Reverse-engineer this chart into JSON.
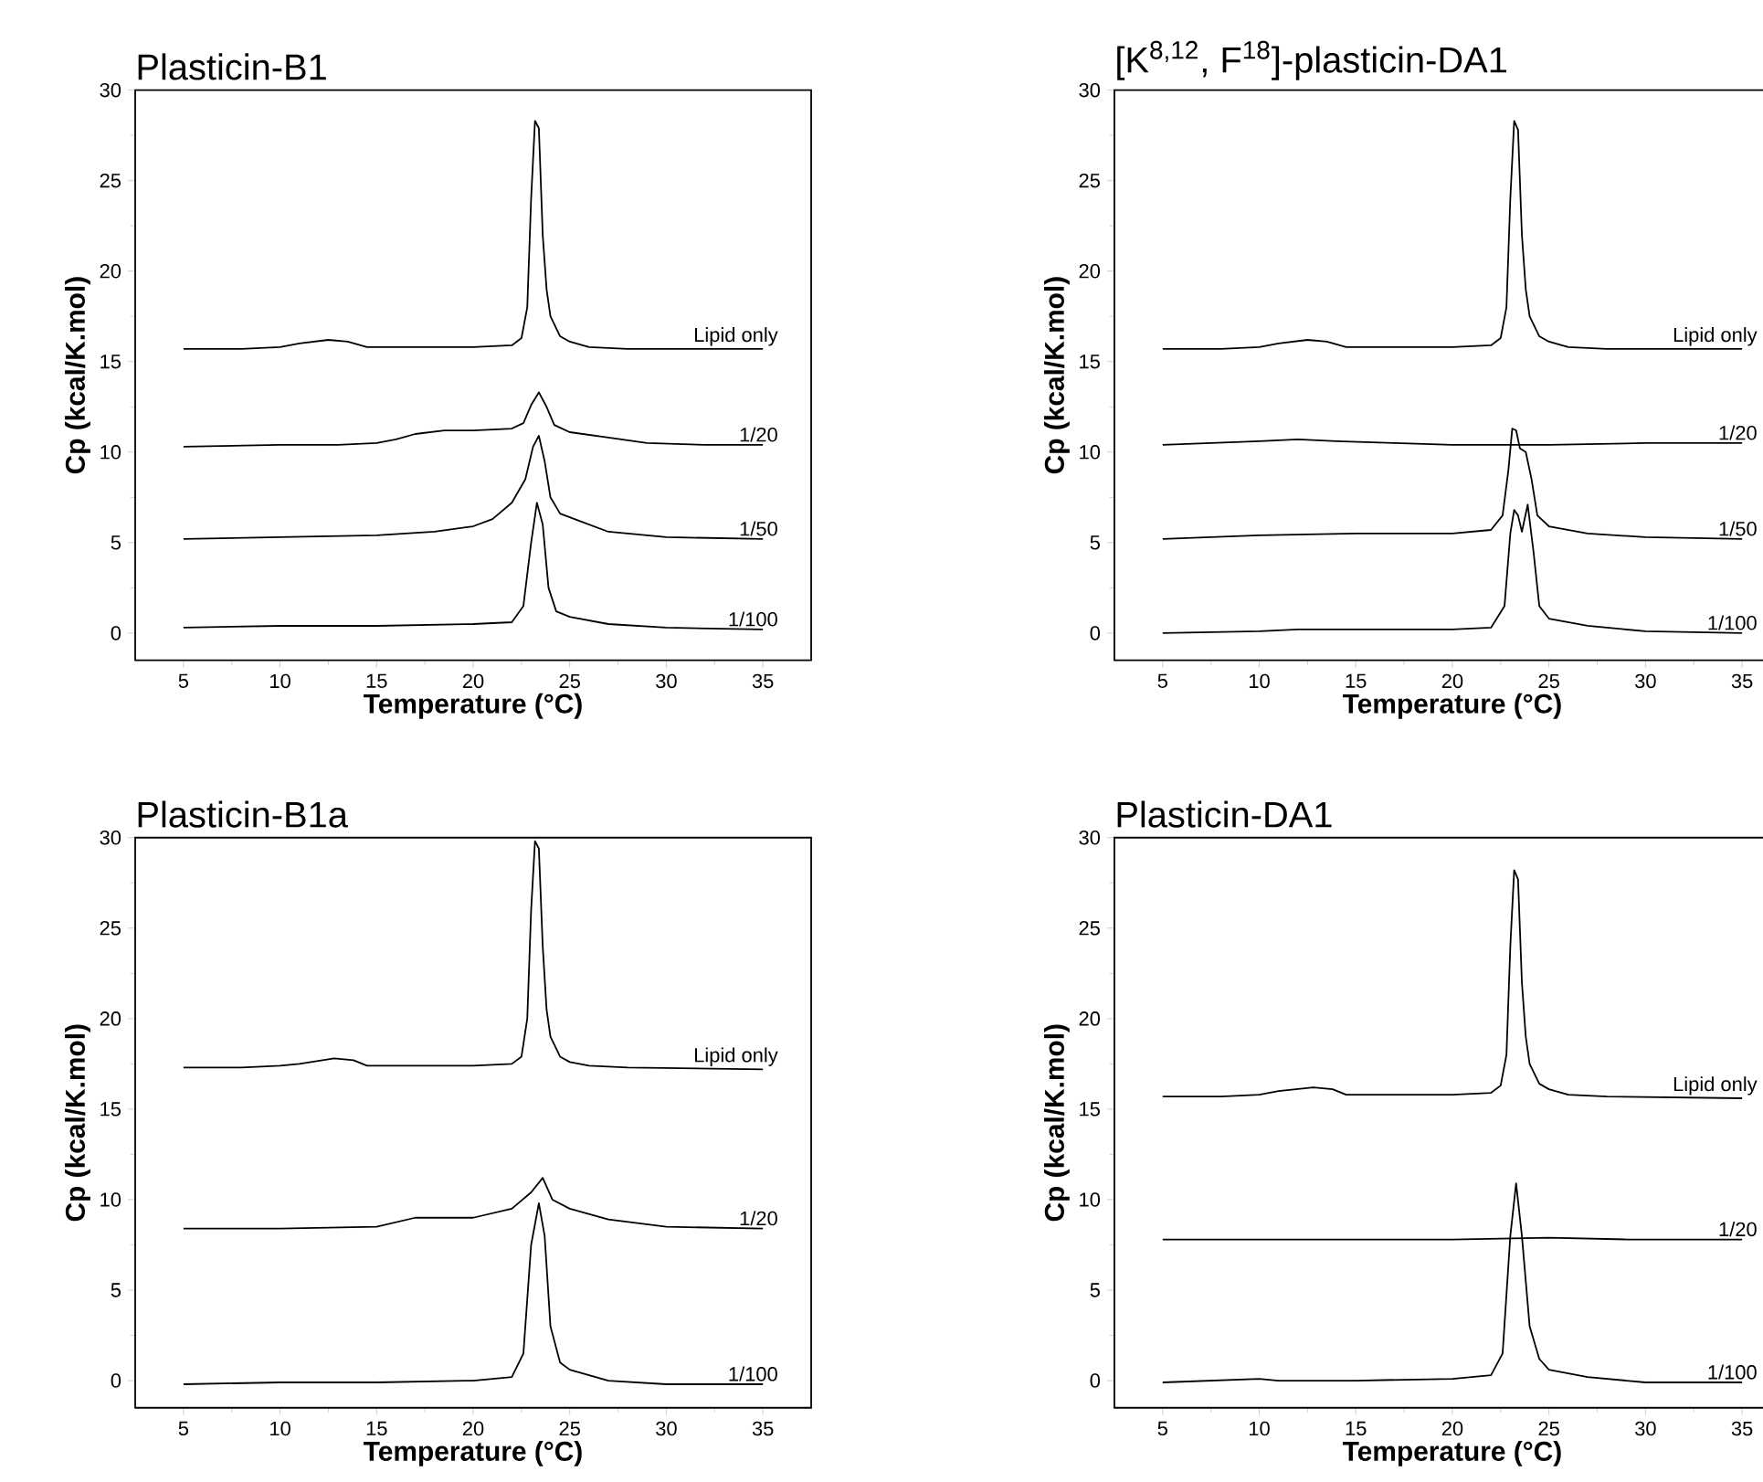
{
  "chart_data": [
    {
      "type": "line",
      "title": "Plasticin-B1",
      "xlabel": "Temperature (°C)",
      "ylabel": "Cp (kcal/K.mol)",
      "xlim": [
        2.5,
        37.5
      ],
      "ylim": [
        -1.5,
        30
      ],
      "xticks": [
        5,
        10,
        15,
        20,
        25,
        30,
        35
      ],
      "yticks": [
        0,
        5,
        10,
        15,
        20,
        25,
        30
      ],
      "series": [
        {
          "name": "Lipid only",
          "color": "#000000",
          "x": [
            5,
            8,
            10,
            11,
            12.5,
            13.5,
            14.5,
            17,
            20,
            22,
            22.5,
            22.8,
            23.0,
            23.2,
            23.4,
            23.6,
            23.8,
            24.0,
            24.5,
            25,
            26,
            28,
            35
          ],
          "values": [
            15.7,
            15.7,
            15.8,
            16.0,
            16.2,
            16.1,
            15.8,
            15.8,
            15.8,
            15.9,
            16.3,
            18,
            24,
            28.3,
            27.9,
            22,
            19,
            17.5,
            16.4,
            16.1,
            15.8,
            15.7,
            15.7
          ]
        },
        {
          "name": "1/20",
          "color": "#000000",
          "x": [
            5,
            10,
            13,
            15,
            16,
            17,
            18.5,
            20,
            22,
            22.6,
            23.0,
            23.4,
            23.8,
            24.2,
            25,
            27,
            29,
            32,
            35
          ],
          "values": [
            10.3,
            10.4,
            10.4,
            10.5,
            10.7,
            11.0,
            11.2,
            11.2,
            11.3,
            11.6,
            12.6,
            13.3,
            12.5,
            11.5,
            11.1,
            10.8,
            10.5,
            10.4,
            10.4
          ]
        },
        {
          "name": "1/50",
          "color": "#000000",
          "x": [
            5,
            10,
            15,
            18,
            20,
            21,
            22,
            22.7,
            23.1,
            23.4,
            23.7,
            24.0,
            24.5,
            25.5,
            27,
            30,
            35
          ],
          "values": [
            5.2,
            5.3,
            5.4,
            5.6,
            5.9,
            6.3,
            7.2,
            8.5,
            10.3,
            10.9,
            9.5,
            7.5,
            6.6,
            6.2,
            5.6,
            5.3,
            5.2
          ]
        },
        {
          "name": "1/100",
          "color": "#000000",
          "x": [
            5,
            10,
            15,
            20,
            22,
            22.6,
            23.0,
            23.3,
            23.6,
            23.9,
            24.3,
            25,
            27,
            30,
            35
          ],
          "values": [
            0.3,
            0.4,
            0.4,
            0.5,
            0.6,
            1.5,
            5,
            7.2,
            6,
            2.5,
            1.2,
            0.9,
            0.5,
            0.3,
            0.2
          ]
        }
      ]
    },
    {
      "type": "line",
      "title": "[K$^{8,12}$, F$^{18}$]-plasticin-DA1",
      "xlabel": "Temperature (°C)",
      "ylabel": "Cp (kcal/K.mol)",
      "xlim": [
        2.5,
        37.5
      ],
      "ylim": [
        -1.5,
        30
      ],
      "xticks": [
        5,
        10,
        15,
        20,
        25,
        30,
        35
      ],
      "yticks": [
        0,
        5,
        10,
        15,
        20,
        25,
        30
      ],
      "series": [
        {
          "name": "Lipid only",
          "color": "#000000",
          "x": [
            5,
            8,
            10,
            11,
            12.5,
            13.5,
            14.5,
            17,
            20,
            22,
            22.5,
            22.8,
            23.0,
            23.2,
            23.4,
            23.6,
            23.8,
            24.0,
            24.5,
            25,
            26,
            28,
            35
          ],
          "values": [
            15.7,
            15.7,
            15.8,
            16.0,
            16.2,
            16.1,
            15.8,
            15.8,
            15.8,
            15.9,
            16.3,
            18,
            24,
            28.3,
            27.8,
            22,
            19,
            17.5,
            16.4,
            16.1,
            15.8,
            15.7,
            15.7
          ]
        },
        {
          "name": "1/20",
          "color": "#000000",
          "x": [
            5,
            10,
            12,
            14,
            17,
            20,
            25,
            30,
            35
          ],
          "values": [
            10.4,
            10.6,
            10.7,
            10.6,
            10.5,
            10.4,
            10.4,
            10.5,
            10.5
          ]
        },
        {
          "name": "1/50",
          "color": "#000000",
          "x": [
            5,
            10,
            15,
            20,
            22,
            22.6,
            22.9,
            23.1,
            23.3,
            23.5,
            23.8,
            24.1,
            24.4,
            25,
            27,
            30,
            35
          ],
          "values": [
            5.2,
            5.4,
            5.5,
            5.5,
            5.7,
            6.5,
            9,
            11.3,
            11.2,
            10.2,
            10.0,
            8.5,
            6.5,
            5.9,
            5.5,
            5.3,
            5.2
          ]
        },
        {
          "name": "1/100",
          "color": "#000000",
          "x": [
            5,
            10,
            12,
            15,
            20,
            22,
            22.7,
            23.0,
            23.2,
            23.4,
            23.6,
            23.9,
            24.2,
            24.5,
            25,
            27,
            30,
            35
          ],
          "values": [
            0,
            0.1,
            0.2,
            0.2,
            0.2,
            0.3,
            1.5,
            5.5,
            6.8,
            6.5,
            5.6,
            7.1,
            4.5,
            1.5,
            0.8,
            0.4,
            0.1,
            0
          ]
        }
      ]
    },
    {
      "type": "line",
      "title": "Plasticin-B1a",
      "xlabel": "Temperature (°C)",
      "ylabel": "Cp (kcal/K.mol)",
      "xlim": [
        2.5,
        37.5
      ],
      "ylim": [
        -1.5,
        30
      ],
      "xticks": [
        5,
        10,
        15,
        20,
        25,
        30,
        35
      ],
      "yticks": [
        0,
        5,
        10,
        15,
        20,
        25,
        30
      ],
      "series": [
        {
          "name": "Lipid only",
          "color": "#000000",
          "x": [
            5,
            8,
            10,
            11,
            12.8,
            13.8,
            14.5,
            17,
            20,
            22,
            22.5,
            22.8,
            23.0,
            23.2,
            23.4,
            23.6,
            23.8,
            24.0,
            24.5,
            25,
            26,
            28,
            35
          ],
          "values": [
            17.3,
            17.3,
            17.4,
            17.5,
            17.8,
            17.7,
            17.4,
            17.4,
            17.4,
            17.5,
            17.9,
            20,
            26,
            29.8,
            29.4,
            24,
            20.5,
            19,
            17.9,
            17.6,
            17.4,
            17.3,
            17.2
          ]
        },
        {
          "name": "1/20",
          "color": "#000000",
          "x": [
            5,
            10,
            15,
            17,
            20,
            22,
            23,
            23.6,
            24.1,
            25,
            27,
            30,
            35
          ],
          "values": [
            8.4,
            8.4,
            8.5,
            9.0,
            9.0,
            9.5,
            10.4,
            11.2,
            10.0,
            9.5,
            8.9,
            8.5,
            8.4
          ]
        },
        {
          "name": "1/100",
          "color": "#000000",
          "x": [
            5,
            10,
            15,
            20,
            22,
            22.6,
            23.0,
            23.4,
            23.7,
            24.0,
            24.5,
            25,
            27,
            30,
            35
          ],
          "values": [
            -0.2,
            -0.1,
            -0.1,
            0,
            0.2,
            1.5,
            7.5,
            9.8,
            8,
            3,
            1,
            0.6,
            0,
            -0.2,
            -0.2
          ]
        }
      ]
    },
    {
      "type": "line",
      "title": "Plasticin-DA1",
      "xlabel": "Temperature (°C)",
      "ylabel": "Cp (kcal/K.mol)",
      "xlim": [
        2.5,
        37.5
      ],
      "ylim": [
        -1.5,
        30
      ],
      "xticks": [
        5,
        10,
        15,
        20,
        25,
        30,
        35
      ],
      "yticks": [
        0,
        5,
        10,
        15,
        20,
        25,
        30
      ],
      "series": [
        {
          "name": "Lipid only",
          "color": "#000000",
          "x": [
            5,
            8,
            10,
            11,
            12.8,
            13.8,
            14.5,
            17,
            20,
            22,
            22.5,
            22.8,
            23.0,
            23.2,
            23.4,
            23.6,
            23.8,
            24.0,
            24.5,
            25,
            26,
            28,
            35
          ],
          "values": [
            15.7,
            15.7,
            15.8,
            16.0,
            16.2,
            16.1,
            15.8,
            15.8,
            15.8,
            15.9,
            16.3,
            18,
            24,
            28.2,
            27.7,
            22,
            19,
            17.5,
            16.4,
            16.1,
            15.8,
            15.7,
            15.6
          ]
        },
        {
          "name": "1/20",
          "color": "#000000",
          "x": [
            5,
            10,
            15,
            20,
            25,
            29,
            35
          ],
          "values": [
            7.8,
            7.8,
            7.8,
            7.8,
            7.9,
            7.8,
            7.8
          ]
        },
        {
          "name": "1/100",
          "color": "#000000",
          "x": [
            5,
            10,
            11,
            15,
            20,
            22,
            22.6,
            23.0,
            23.3,
            23.6,
            24.0,
            24.5,
            25,
            27,
            30,
            35
          ],
          "values": [
            -0.1,
            0.1,
            0,
            0,
            0.1,
            0.3,
            1.5,
            8,
            10.9,
            8,
            3,
            1.2,
            0.6,
            0.2,
            -0.1,
            -0.1
          ]
        }
      ]
    }
  ]
}
